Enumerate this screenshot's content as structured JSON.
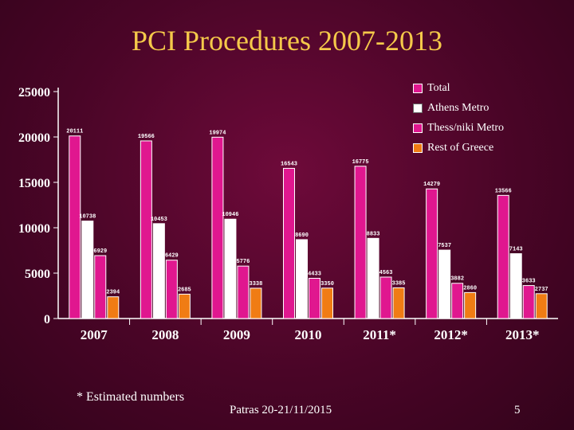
{
  "slide": {
    "title": "PCI Procedures 2007-2013",
    "footnote": "* Estimated numbers",
    "place": "Patras 20-21/11/2015",
    "page_number": "5"
  },
  "chart_data": {
    "type": "bar",
    "title": "PCI Procedures 2007-2013",
    "categories": [
      "2007",
      "2008",
      "2009",
      "2010",
      "2011*",
      "2012*",
      "2013*"
    ],
    "series": [
      {
        "name": "Total",
        "color": "#e0178f",
        "values": [
          20111,
          19566,
          19974,
          16543,
          16775,
          14279,
          13566
        ]
      },
      {
        "name": "Athens Metro",
        "color": "#ffffff",
        "values": [
          10738,
          10453,
          10946,
          8690,
          8833,
          7537,
          7143
        ]
      },
      {
        "name": "Thess/niki Metro",
        "color": "#e0178f",
        "values": [
          6929,
          6429,
          5776,
          4433,
          4563,
          3882,
          3633
        ]
      },
      {
        "name": "Rest of Greece",
        "color": "#f07c14",
        "values": [
          2394,
          2685,
          3338,
          3350,
          3385,
          2860,
          2737
        ]
      }
    ],
    "ylim": [
      0,
      25000
    ],
    "yticks": [
      "0",
      "5000",
      "10000",
      "15000",
      "20000",
      "25000"
    ],
    "legend_position": "top-right",
    "grid": false
  }
}
